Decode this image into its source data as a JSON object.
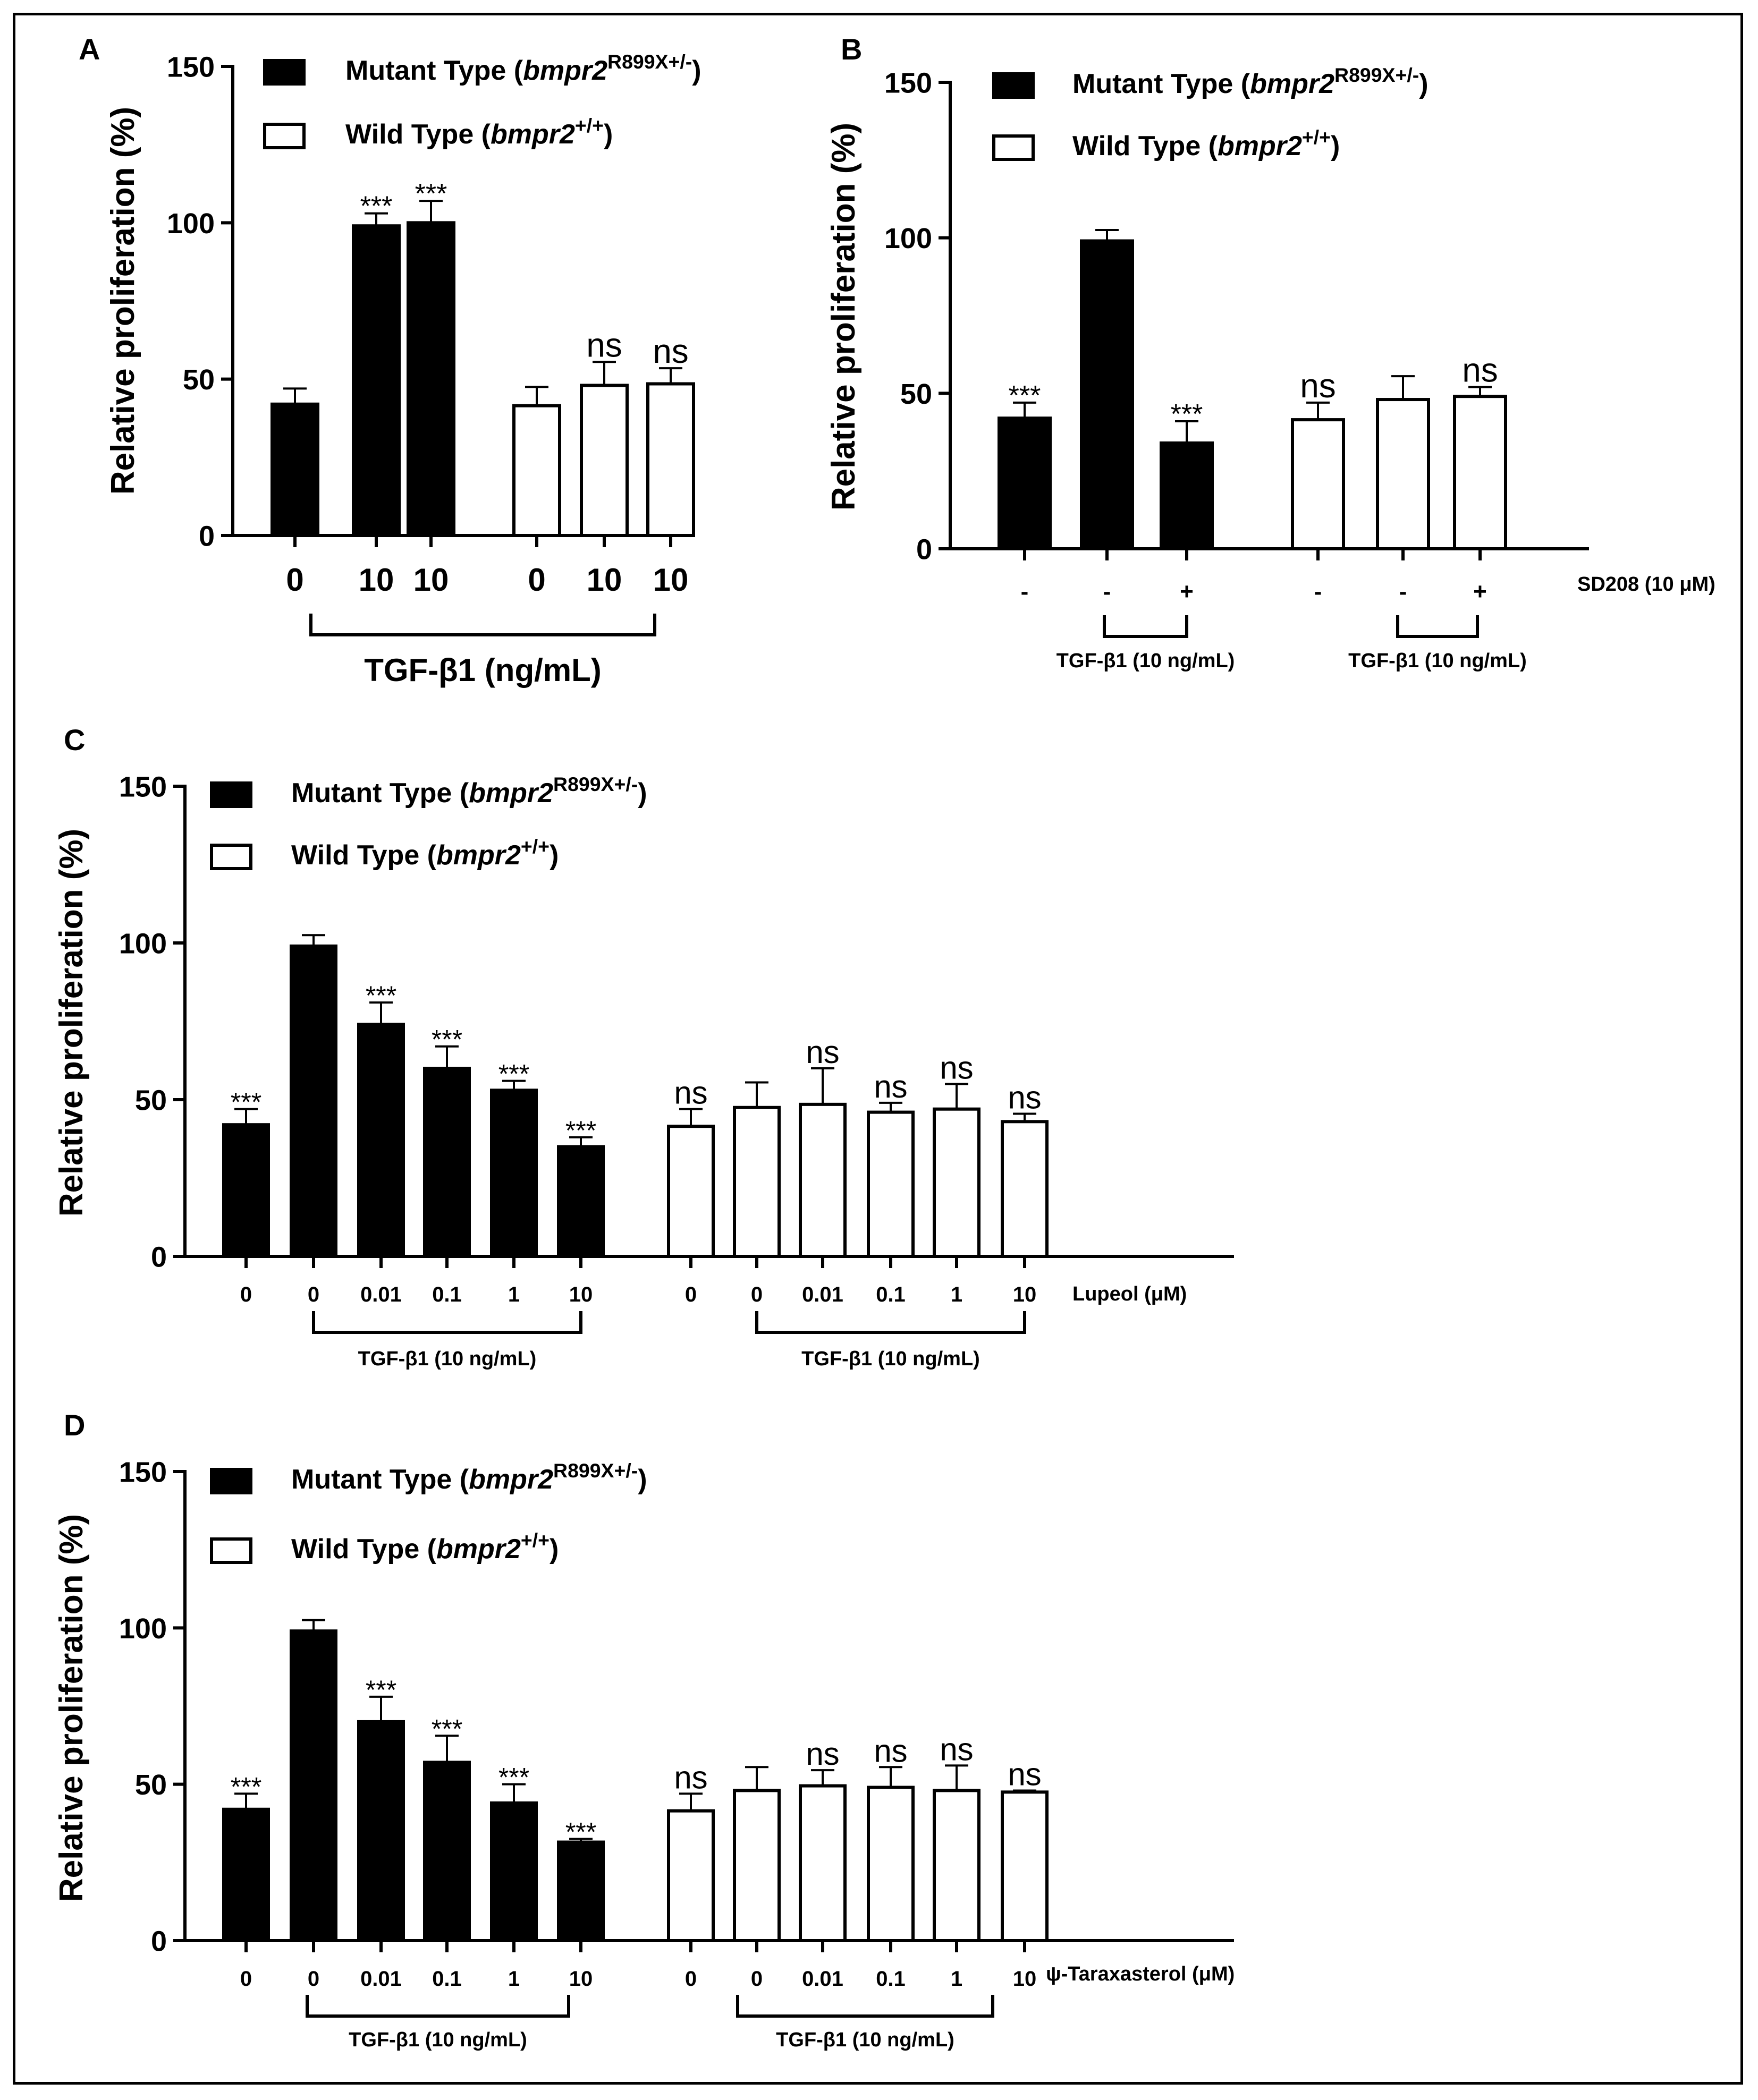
{
  "chart_data": [
    {
      "panel": "A",
      "type": "bar",
      "ylabel": "Relative proliferation (%)",
      "ylim": [
        0,
        150
      ],
      "yticks": [
        0,
        50,
        100,
        150
      ],
      "series": [
        {
          "name": "Mutant Type",
          "fill": "#000000",
          "x_labels": [
            "0",
            "10",
            "10"
          ],
          "values": [
            42,
            99,
            100
          ],
          "errors": [
            5,
            4,
            7
          ],
          "significance": [
            "",
            "***",
            "***"
          ]
        },
        {
          "name": "Wild Type",
          "fill": "#ffffff",
          "x_labels": [
            "0",
            "10",
            "10"
          ],
          "values": [
            41.5,
            48,
            48.5
          ],
          "errors": [
            6,
            7.5,
            5
          ],
          "significance": [
            "",
            "ns",
            "ns"
          ]
        }
      ],
      "brackets": [
        {
          "label": "TGF-β1 (ng/mL)"
        }
      ],
      "row_label": "",
      "legend": [
        {
          "prefix": "Mutant Type (",
          "gene": "bmpr2",
          "sup": "R899X+/-",
          "suffix": ")",
          "fill": "#000000"
        },
        {
          "prefix": "Wild Type (",
          "gene": "bmpr2",
          "sup": "+/+",
          "suffix": ")",
          "fill": "#ffffff"
        }
      ]
    },
    {
      "panel": "B",
      "type": "bar",
      "ylabel": "Relative proliferation (%)",
      "ylim": [
        0,
        150
      ],
      "yticks": [
        0,
        50,
        100,
        150
      ],
      "series": [
        {
          "name": "Mutant Type",
          "fill": "#000000",
          "x_labels": [
            "-",
            "-",
            "+"
          ],
          "values": [
            42,
            99,
            34
          ],
          "errors": [
            5,
            3.5,
            7
          ],
          "significance": [
            "***",
            "",
            "***"
          ]
        },
        {
          "name": "Wild Type",
          "fill": "#ffffff",
          "x_labels": [
            "-",
            "-",
            "+"
          ],
          "values": [
            41.5,
            48,
            49
          ],
          "errors": [
            5.5,
            7.5,
            3
          ],
          "significance": [
            "ns",
            "",
            "ns"
          ]
        }
      ],
      "brackets": [
        {
          "label": "TGF-β1 (10 ng/mL)"
        },
        {
          "label": "TGF-β1 (10 ng/mL)"
        }
      ],
      "row_label": "SD208 (10 μM)",
      "legend": [
        {
          "prefix": "Mutant Type (",
          "gene": "bmpr2",
          "sup": "R899X+/-",
          "suffix": ")",
          "fill": "#000000"
        },
        {
          "prefix": "Wild Type (",
          "gene": "bmpr2",
          "sup": "+/+",
          "suffix": ")",
          "fill": "#ffffff"
        }
      ]
    },
    {
      "panel": "C",
      "type": "bar",
      "ylabel": "Relative proliferation (%)",
      "ylim": [
        0,
        150
      ],
      "yticks": [
        0,
        50,
        100,
        150
      ],
      "series": [
        {
          "name": "Mutant Type",
          "fill": "#000000",
          "x_labels": [
            "0",
            "0",
            "0.01",
            "0.1",
            "1",
            "10"
          ],
          "values": [
            42,
            99,
            74,
            60,
            53,
            35
          ],
          "errors": [
            5,
            3.5,
            7,
            7,
            3,
            3
          ],
          "significance": [
            "***",
            "",
            "***",
            "***",
            "***",
            "***"
          ]
        },
        {
          "name": "Wild Type",
          "fill": "#ffffff",
          "x_labels": [
            "0",
            "0",
            "0.01",
            "0.1",
            "1",
            "10"
          ],
          "values": [
            41.5,
            47.5,
            48.5,
            46,
            47,
            43
          ],
          "errors": [
            5.5,
            8,
            11.5,
            3,
            8,
            2.5
          ],
          "significance": [
            "ns",
            "",
            "ns",
            "ns",
            "ns",
            "ns"
          ]
        }
      ],
      "brackets": [
        {
          "label": "TGF-β1 (10 ng/mL)"
        },
        {
          "label": "TGF-β1 (10 ng/mL)"
        }
      ],
      "row_label": "Lupeol (μM)",
      "legend": [
        {
          "prefix": "Mutant Type (",
          "gene": "bmpr2",
          "sup": "R899X+/-",
          "suffix": ")",
          "fill": "#000000"
        },
        {
          "prefix": "Wild Type (",
          "gene": "bmpr2",
          "sup": "+/+",
          "suffix": ")",
          "fill": "#ffffff"
        }
      ]
    },
    {
      "panel": "D",
      "type": "bar",
      "ylabel": "Relative proliferation (%)",
      "ylim": [
        0,
        150
      ],
      "yticks": [
        0,
        50,
        100,
        150
      ],
      "series": [
        {
          "name": "Mutant Type",
          "fill": "#000000",
          "x_labels": [
            "0",
            "0",
            "0.01",
            "0.1",
            "1",
            "10"
          ],
          "values": [
            42,
            99,
            70,
            57,
            44,
            31.5
          ],
          "errors": [
            5,
            3.5,
            8,
            8.5,
            6,
            1
          ],
          "significance": [
            "***",
            "",
            "***",
            "***",
            "***",
            "***"
          ]
        },
        {
          "name": "Wild Type",
          "fill": "#ffffff",
          "x_labels": [
            "0",
            "0",
            "0.01",
            "0.1",
            "1",
            "10"
          ],
          "values": [
            41.5,
            48,
            49.5,
            49,
            48,
            47.5
          ],
          "errors": [
            5.5,
            7.5,
            5,
            6.5,
            8,
            0.5
          ],
          "significance": [
            "ns",
            "",
            "ns",
            "ns",
            "ns",
            "ns"
          ]
        }
      ],
      "brackets": [
        {
          "label": "TGF-β1 (10 ng/mL)"
        },
        {
          "label": "TGF-β1 (10 ng/mL)"
        }
      ],
      "row_label": "ψ-Taraxasterol (μM)",
      "legend": [
        {
          "prefix": "Mutant Type (",
          "gene": "bmpr2",
          "sup": "R899X+/-",
          "suffix": ")",
          "fill": "#000000"
        },
        {
          "prefix": "Wild Type (",
          "gene": "bmpr2",
          "sup": "+/+",
          "suffix": ")",
          "fill": "#ffffff"
        }
      ]
    }
  ]
}
